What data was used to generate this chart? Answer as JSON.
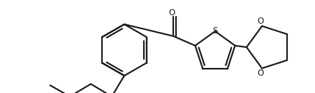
{
  "bg_color": "#ffffff",
  "line_color": "#1a1a1a",
  "line_width": 1.6,
  "fig_width": 4.52,
  "fig_height": 1.34,
  "dpi": 100,
  "S_label": {
    "text": "S",
    "fontsize": 8.5
  },
  "O_carbonyl": {
    "text": "O",
    "fontsize": 8.5
  },
  "O1_diox": {
    "text": "O",
    "fontsize": 8.5
  },
  "O2_diox": {
    "text": "O",
    "fontsize": 8.5
  }
}
